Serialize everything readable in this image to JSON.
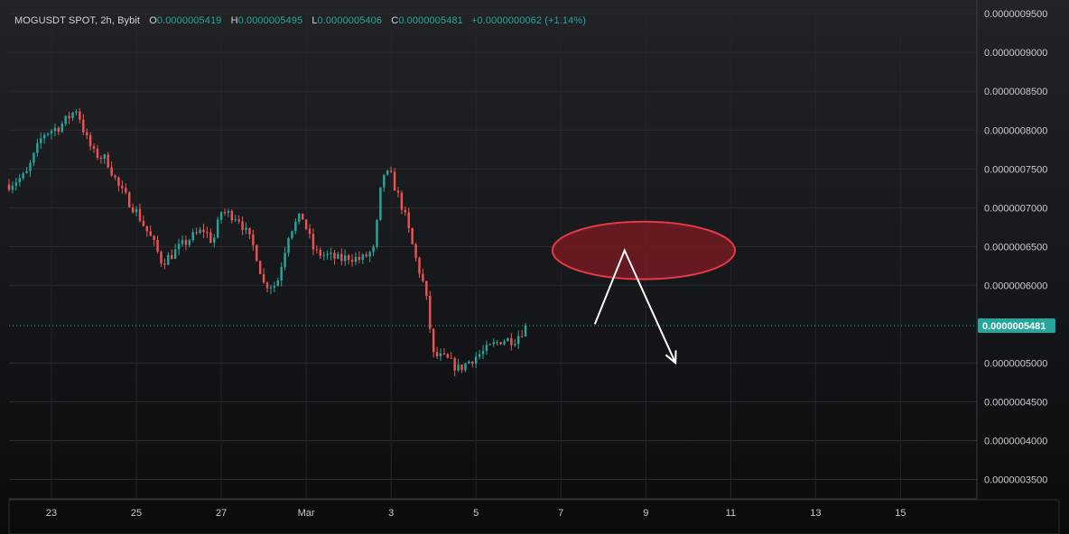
{
  "header": {
    "symbol": "MOGUSDT SPOT, 2h, Bybit",
    "open_label": "O",
    "open": "0.0000005419",
    "high_label": "H",
    "high": "0.0000005495",
    "low_label": "L",
    "low": "0.0000005406",
    "close_label": "C",
    "close": "0.0000005481",
    "change": "+0.0000000062 (+1.14%)"
  },
  "colors": {
    "up": "#26a69a",
    "down": "#ef5350",
    "last_price_bg": "#26a69a",
    "zone_stroke": "#e53946",
    "zone_fill": "#7a1a22",
    "arrow": "#ffffff"
  },
  "chart_data": {
    "type": "candlestick",
    "interval": "2h",
    "grid": true,
    "yaxis": {
      "position": "right",
      "ylim": [
        3.25e-07,
        9.63e-07
      ],
      "ticks": [
        "0.0000009500",
        "0.0000009000",
        "0.0000008500",
        "0.0000008000",
        "0.0000007500",
        "0.0000007000",
        "0.0000006500",
        "0.0000006000",
        "0.0000005000",
        "0.0000004500",
        "0.0000004000",
        "0.0000003500"
      ],
      "tick_values": [
        9.5e-07,
        9e-07,
        8.5e-07,
        8e-07,
        7.5e-07,
        7e-07,
        6.5e-07,
        6e-07,
        5e-07,
        4.5e-07,
        4e-07,
        3.5e-07
      ]
    },
    "xaxis": {
      "ticks": [
        "23",
        "25",
        "27",
        "Mar",
        "3",
        "5",
        "7",
        "9",
        "11",
        "13",
        "15"
      ],
      "tick_day": [
        23,
        25,
        27,
        29,
        31,
        33,
        35,
        37,
        39,
        41,
        43
      ]
    },
    "last_price": {
      "label": "0.0000005481",
      "value": 5.481e-07
    },
    "trend_points": [
      [
        22.0,
        7.3
      ],
      [
        22.4,
        7.42
      ],
      [
        22.8,
        7.95
      ],
      [
        23.2,
        8.05
      ],
      [
        23.6,
        8.28
      ],
      [
        23.8,
        7.92
      ],
      [
        24.0,
        7.7
      ],
      [
        24.3,
        7.62
      ],
      [
        24.6,
        7.25
      ],
      [
        25.0,
        6.95
      ],
      [
        25.4,
        6.55
      ],
      [
        25.6,
        6.3
      ],
      [
        25.8,
        6.38
      ],
      [
        26.0,
        6.48
      ],
      [
        26.3,
        6.62
      ],
      [
        26.6,
        6.72
      ],
      [
        26.8,
        6.55
      ],
      [
        27.0,
        6.95
      ],
      [
        27.4,
        6.88
      ],
      [
        27.8,
        6.45
      ],
      [
        28.0,
        6.02
      ],
      [
        28.3,
        6.0
      ],
      [
        28.6,
        6.7
      ],
      [
        28.9,
        6.9
      ],
      [
        29.2,
        6.42
      ],
      [
        29.5,
        6.38
      ],
      [
        29.8,
        6.33
      ],
      [
        30.0,
        6.37
      ],
      [
        30.3,
        6.33
      ],
      [
        30.6,
        6.46
      ],
      [
        30.8,
        7.45
      ],
      [
        31.0,
        7.4
      ],
      [
        31.3,
        6.95
      ],
      [
        31.6,
        6.3
      ],
      [
        31.8,
        5.95
      ],
      [
        32.0,
        5.1
      ],
      [
        32.3,
        5.05
      ],
      [
        32.6,
        4.92
      ],
      [
        32.9,
        5.05
      ],
      [
        33.2,
        5.15
      ],
      [
        33.6,
        5.3
      ],
      [
        33.9,
        5.3
      ],
      [
        34.2,
        5.48
      ]
    ],
    "annotations": {
      "resistance_zone": {
        "day_start": 34.8,
        "day_end": 39.1,
        "price_center": 6.45e-07,
        "price_halfheight": 3.7e-08
      },
      "projection_path": [
        [
          35.8,
          5.5
        ],
        [
          36.5,
          6.45
        ],
        [
          37.7,
          5.0
        ]
      ]
    }
  }
}
